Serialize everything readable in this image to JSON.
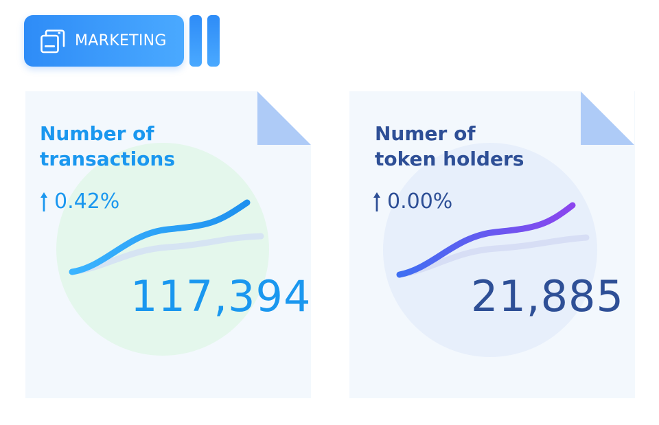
{
  "header": {
    "tag_label": "MARKETING",
    "tag_icon": "stacked-windows-icon",
    "accent_color": "#2e8cf7"
  },
  "cards": [
    {
      "title": "Number of\ntransactions",
      "change": "0.42%",
      "change_direction": "up",
      "value": "117,394",
      "text_color": "#1a97ef",
      "line_colors": [
        "#3bb4ff",
        "#1e90ef"
      ],
      "blob_color": "#e4f7ec"
    },
    {
      "title": "Numer of\ntoken holders",
      "change": "0.00%",
      "change_direction": "up",
      "value": "21,885",
      "text_color": "#2e4f96",
      "line_colors": [
        "#3f6ff2",
        "#8b45ee"
      ],
      "blob_color": "#e7effb"
    }
  ]
}
